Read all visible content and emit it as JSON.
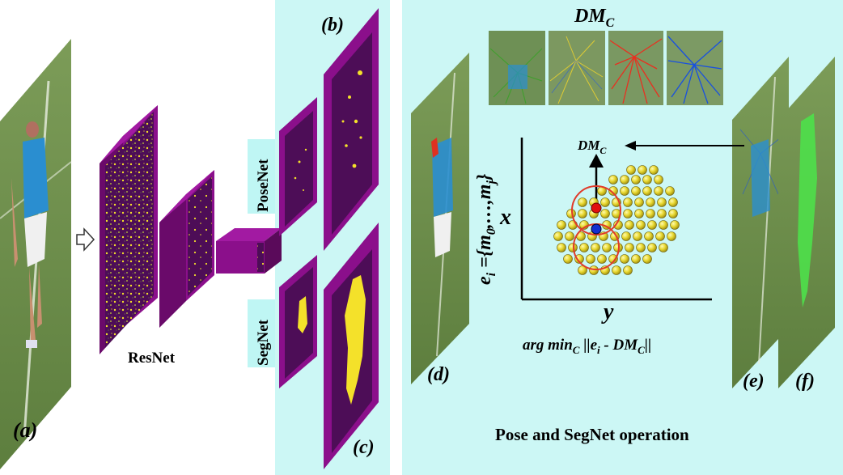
{
  "labels": {
    "a": "(a)",
    "b": "(b)",
    "c": "(c)",
    "d": "(d)",
    "e": "(e)",
    "f": "(f)"
  },
  "network": {
    "backbone": "ResNet",
    "pose_branch": "PoseNet",
    "seg_branch": "SegNet"
  },
  "operation": {
    "dmc_title": "DM",
    "dmc_sub": "C",
    "arrow_label": "DM",
    "arrow_label_sub": "C",
    "y_axis_expr": "e",
    "y_axis_sub": "i",
    "y_axis_set": " ={m",
    "y_axis_set_sub0": "0",
    "y_axis_dots": ",…,m",
    "y_axis_set_subj": "j",
    "y_axis_close": "}",
    "x_axis_var": "x",
    "horiz_axis_var": "y",
    "formula_arg": "arg min",
    "formula_sub_c": "C",
    "formula_norm_open": " ||e",
    "formula_sub_i": "i",
    "formula_minus": " - DM",
    "formula_sub_c2": "C",
    "formula_close": "||",
    "caption": "Pose and SegNet operation"
  },
  "colors": {
    "panel_cyan": "#ccf7f5",
    "feature_purple": "#8b0f8b",
    "feature_dark": "#4d0d57",
    "activation_yellow": "#f4e12a",
    "grass_green": "#6b8d4a",
    "net_label_bg": "#bff6f4",
    "dot_yellow": "#e8d830",
    "ring_red": "#e03a2a",
    "point_red": "#e11010",
    "point_blue": "#1330d0"
  }
}
